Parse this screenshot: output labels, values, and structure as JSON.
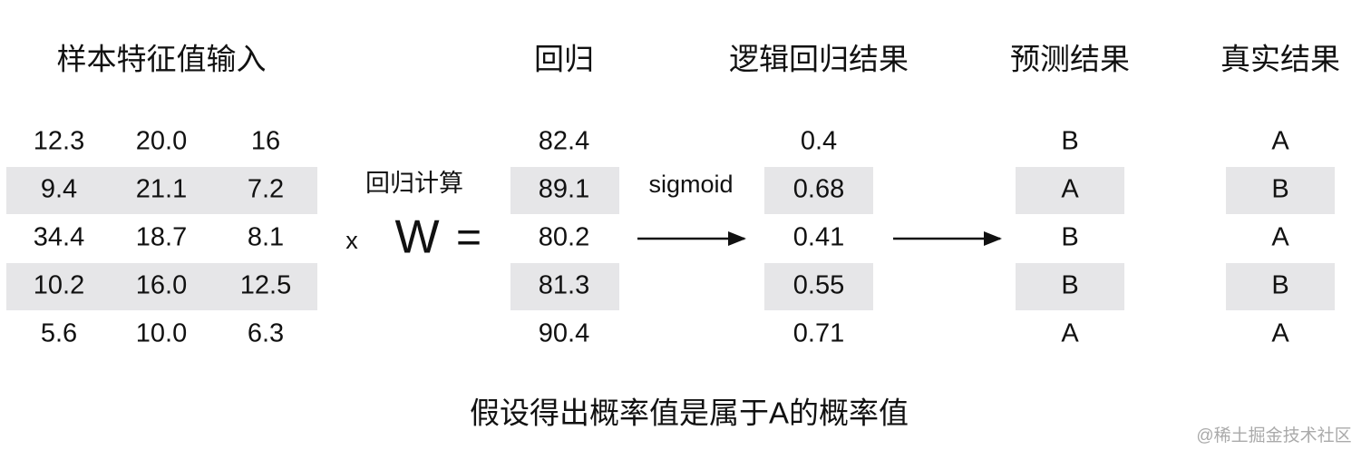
{
  "headers": {
    "features": "样本特征值输入",
    "regression": "回归",
    "logistic": "逻辑回归结果",
    "prediction": "预测结果",
    "truth": "真实结果"
  },
  "features": [
    [
      "12.3",
      "20.0",
      "16"
    ],
    [
      "9.4",
      "21.1",
      "7.2"
    ],
    [
      "34.4",
      "18.7",
      "8.1"
    ],
    [
      "10.2",
      "16.0",
      "12.5"
    ],
    [
      "5.6",
      "10.0",
      "6.3"
    ]
  ],
  "regression": [
    "82.4",
    "89.1",
    "80.2",
    "81.3",
    "90.4"
  ],
  "logistic": [
    "0.4",
    "0.68",
    "0.41",
    "0.55",
    "0.71"
  ],
  "prediction": [
    "B",
    "A",
    "B",
    "B",
    "A"
  ],
  "truth": [
    "A",
    "B",
    "A",
    "B",
    "A"
  ],
  "labels": {
    "compute": "回归计算",
    "x": "x",
    "w": "W",
    "equals": "=",
    "sigmoid": "sigmoid"
  },
  "footer": "假设得出概率值是属于A的概率值",
  "watermark": "@稀土掘金技术社区"
}
